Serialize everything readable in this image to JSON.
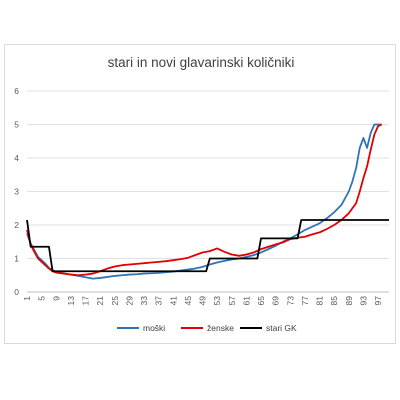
{
  "chart_data": {
    "type": "line",
    "title": "stari in novi glavarinski količniki",
    "xlabel": "",
    "ylabel": "",
    "x_ticks": [
      1,
      5,
      9,
      13,
      17,
      21,
      25,
      29,
      33,
      37,
      41,
      45,
      49,
      53,
      57,
      61,
      65,
      69,
      73,
      77,
      81,
      85,
      89,
      93,
      97
    ],
    "xlim": [
      1,
      100
    ],
    "ylim": [
      0,
      6
    ],
    "y_ticks": [
      0,
      1,
      2,
      3,
      4,
      5,
      6
    ],
    "grid": true,
    "legend_position": "bottom",
    "series": [
      {
        "name": "moški",
        "color": "#2e75b6",
        "points": [
          [
            1,
            1.75
          ],
          [
            2,
            1.45
          ],
          [
            3,
            1.25
          ],
          [
            4,
            1.05
          ],
          [
            5,
            0.95
          ],
          [
            6,
            0.85
          ],
          [
            7,
            0.72
          ],
          [
            8,
            0.65
          ],
          [
            9,
            0.6
          ],
          [
            11,
            0.56
          ],
          [
            13,
            0.52
          ],
          [
            15,
            0.48
          ],
          [
            17,
            0.44
          ],
          [
            19,
            0.4
          ],
          [
            21,
            0.42
          ],
          [
            23,
            0.45
          ],
          [
            25,
            0.48
          ],
          [
            27,
            0.5
          ],
          [
            29,
            0.52
          ],
          [
            31,
            0.53
          ],
          [
            33,
            0.55
          ],
          [
            35,
            0.56
          ],
          [
            37,
            0.57
          ],
          [
            39,
            0.59
          ],
          [
            41,
            0.61
          ],
          [
            43,
            0.64
          ],
          [
            45,
            0.67
          ],
          [
            47,
            0.7
          ],
          [
            49,
            0.75
          ],
          [
            51,
            0.82
          ],
          [
            53,
            0.88
          ],
          [
            55,
            0.93
          ],
          [
            57,
            0.97
          ],
          [
            59,
            1.0
          ],
          [
            61,
            1.05
          ],
          [
            63,
            1.1
          ],
          [
            65,
            1.18
          ],
          [
            67,
            1.28
          ],
          [
            69,
            1.38
          ],
          [
            71,
            1.5
          ],
          [
            73,
            1.6
          ],
          [
            75,
            1.72
          ],
          [
            77,
            1.85
          ],
          [
            79,
            1.95
          ],
          [
            81,
            2.05
          ],
          [
            83,
            2.2
          ],
          [
            85,
            2.38
          ],
          [
            87,
            2.6
          ],
          [
            89,
            3.0
          ],
          [
            90,
            3.3
          ],
          [
            91,
            3.7
          ],
          [
            92,
            4.3
          ],
          [
            93,
            4.6
          ],
          [
            94,
            4.3
          ],
          [
            95,
            4.75
          ],
          [
            96,
            5.0
          ],
          [
            98,
            5.0
          ]
        ]
      },
      {
        "name": "ženske",
        "color": "#e00000",
        "points": [
          [
            1,
            1.85
          ],
          [
            2,
            1.42
          ],
          [
            3,
            1.2
          ],
          [
            4,
            1.0
          ],
          [
            5,
            0.9
          ],
          [
            6,
            0.8
          ],
          [
            7,
            0.7
          ],
          [
            8,
            0.62
          ],
          [
            9,
            0.58
          ],
          [
            11,
            0.55
          ],
          [
            13,
            0.52
          ],
          [
            15,
            0.5
          ],
          [
            17,
            0.52
          ],
          [
            19,
            0.55
          ],
          [
            21,
            0.62
          ],
          [
            23,
            0.7
          ],
          [
            25,
            0.76
          ],
          [
            27,
            0.8
          ],
          [
            29,
            0.82
          ],
          [
            31,
            0.84
          ],
          [
            33,
            0.86
          ],
          [
            35,
            0.88
          ],
          [
            37,
            0.9
          ],
          [
            39,
            0.92
          ],
          [
            41,
            0.95
          ],
          [
            43,
            0.98
          ],
          [
            45,
            1.02
          ],
          [
            47,
            1.1
          ],
          [
            49,
            1.18
          ],
          [
            51,
            1.22
          ],
          [
            53,
            1.3
          ],
          [
            55,
            1.2
          ],
          [
            57,
            1.12
          ],
          [
            59,
            1.08
          ],
          [
            61,
            1.12
          ],
          [
            63,
            1.18
          ],
          [
            65,
            1.28
          ],
          [
            67,
            1.35
          ],
          [
            69,
            1.42
          ],
          [
            71,
            1.48
          ],
          [
            73,
            1.58
          ],
          [
            75,
            1.62
          ],
          [
            77,
            1.65
          ],
          [
            79,
            1.72
          ],
          [
            81,
            1.78
          ],
          [
            83,
            1.88
          ],
          [
            85,
            2.0
          ],
          [
            87,
            2.15
          ],
          [
            89,
            2.35
          ],
          [
            91,
            2.65
          ],
          [
            92,
            3.0
          ],
          [
            93,
            3.4
          ],
          [
            94,
            3.75
          ],
          [
            95,
            4.25
          ],
          [
            96,
            4.7
          ],
          [
            97,
            4.95
          ],
          [
            98,
            5.0
          ]
        ]
      },
      {
        "name": "stari GK",
        "color": "#000000",
        "points": [
          [
            1,
            2.15
          ],
          [
            2,
            1.35
          ],
          [
            7,
            1.35
          ],
          [
            8,
            0.62
          ],
          [
            50,
            0.62
          ],
          [
            51,
            1.0
          ],
          [
            64,
            1.0
          ],
          [
            65,
            1.6
          ],
          [
            75,
            1.6
          ],
          [
            76,
            2.15
          ],
          [
            100,
            2.15
          ]
        ]
      }
    ]
  }
}
